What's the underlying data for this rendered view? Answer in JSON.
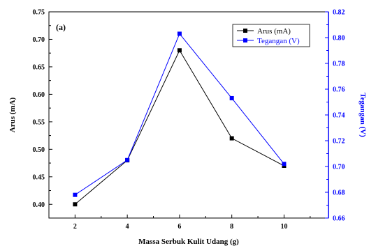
{
  "chart_data": {
    "type": "line",
    "panel_label": "(a)",
    "x": [
      2,
      4,
      6,
      8,
      10
    ],
    "x_ticks": [
      "2",
      "4",
      "6",
      "8",
      "10"
    ],
    "xlabel": "Massa Serbuk Kulit Udang (g)",
    "xlim": [
      1,
      11.7
    ],
    "ylabel_left": "Arus (mA)",
    "ylim_left": [
      0.375,
      0.75
    ],
    "yticks_left": [
      "0.40",
      "0.45",
      "0.50",
      "0.55",
      "0.60",
      "0.65",
      "0.70",
      "0.75"
    ],
    "ylabel_right": "Tegangan (V)",
    "ylim_right": [
      0.66,
      0.82
    ],
    "yticks_right": [
      "0.66",
      "0.68",
      "0.70",
      "0.72",
      "0.74",
      "0.76",
      "0.78",
      "0.80",
      "0.82"
    ],
    "legend_position": "top-right",
    "series": [
      {
        "name": "Arus (mA)",
        "axis": "left",
        "color": "#000000",
        "marker": "square",
        "values": [
          0.4,
          0.48,
          0.68,
          0.52,
          0.47
        ]
      },
      {
        "name": "Tegangan (V)",
        "axis": "right",
        "color": "#0000ff",
        "marker": "square",
        "values": [
          0.678,
          0.705,
          0.803,
          0.753,
          0.702
        ]
      }
    ]
  }
}
